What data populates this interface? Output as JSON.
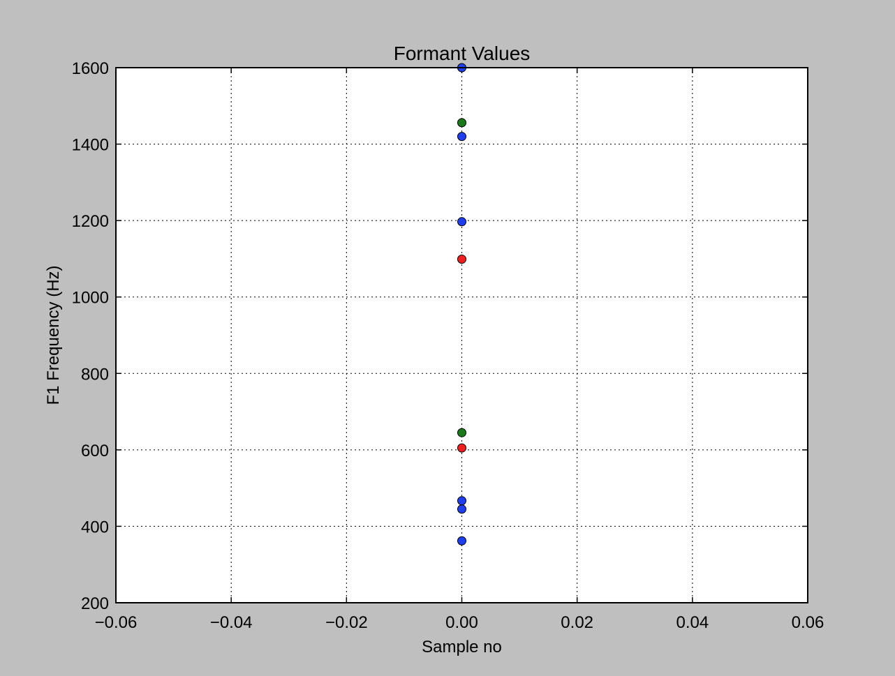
{
  "chart_data": {
    "type": "scatter",
    "title": "Formant Values",
    "xlabel": "Sample no",
    "ylabel": "F1 Frequency (Hz)",
    "xlim": [
      -0.06,
      0.06
    ],
    "ylim": [
      200,
      1600
    ],
    "x_ticks": [
      -0.06,
      -0.04,
      -0.02,
      0.0,
      0.02,
      0.04,
      0.06
    ],
    "x_tick_labels": [
      "−0.06",
      "−0.04",
      "−0.02",
      "0.00",
      "0.02",
      "0.04",
      "0.06"
    ],
    "y_ticks": [
      200,
      400,
      600,
      800,
      1000,
      1200,
      1400,
      1600
    ],
    "y_tick_labels": [
      "200",
      "400",
      "600",
      "800",
      "1000",
      "1200",
      "1400",
      "1600"
    ],
    "grid": true,
    "grid_style": "dotted",
    "background_color": "#bfbfbf",
    "plot_background_color": "#ffffff",
    "series": [
      {
        "color": "#1f3fef",
        "points": [
          [
            0,
            1600
          ],
          [
            0,
            1420
          ],
          [
            0,
            1197
          ],
          [
            0,
            467
          ],
          [
            0,
            445
          ],
          [
            0,
            362
          ]
        ]
      },
      {
        "color": "#1a7a1a",
        "points": [
          [
            0,
            1456
          ],
          [
            0,
            645
          ]
        ]
      },
      {
        "color": "#ef1f1f",
        "points": [
          [
            0,
            1099
          ],
          [
            0,
            605
          ]
        ]
      }
    ]
  }
}
